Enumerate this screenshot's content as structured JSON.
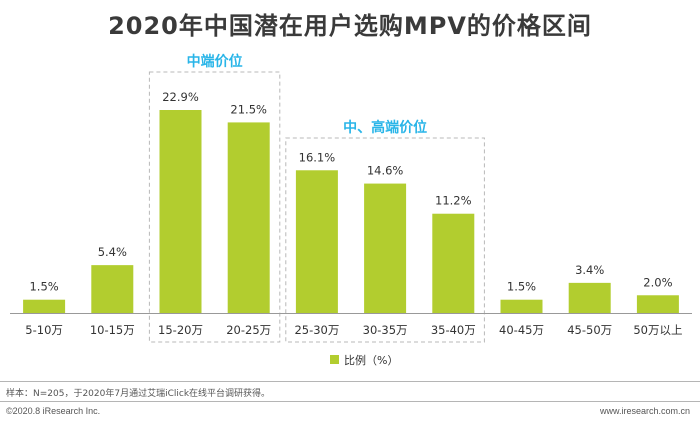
{
  "title": "2020年中国潜在用户选购MPV的价格区间",
  "chart_data": {
    "type": "bar",
    "categories": [
      "5-10万",
      "10-15万",
      "15-20万",
      "20-25万",
      "25-30万",
      "30-35万",
      "35-40万",
      "40-45万",
      "45-50万",
      "50万以上"
    ],
    "series": [
      {
        "name": "比例（%）",
        "values": [
          1.5,
          5.4,
          22.9,
          21.5,
          16.1,
          14.6,
          11.2,
          1.5,
          3.4,
          2.0
        ],
        "labels": [
          "1.5%",
          "5.4%",
          "22.9%",
          "21.5%",
          "16.1%",
          "14.6%",
          "11.2%",
          "1.5%",
          "3.4%",
          "2.0%"
        ]
      }
    ],
    "ylim": [
      0,
      25
    ],
    "grid": false,
    "legend_position": "bottom-center",
    "groups": [
      {
        "label": "中端价位",
        "categories": [
          "15-20万",
          "20-25万"
        ]
      },
      {
        "label": "中、高端价位",
        "categories": [
          "25-30万",
          "30-35万",
          "35-40万"
        ]
      }
    ],
    "colors": {
      "bar": "#b2cd2f",
      "group_label": "#29b5e8",
      "group_border": "#b8b8b8",
      "axis": "#999999",
      "text": "#333333"
    }
  },
  "footer": {
    "source_note": "样本：N=205，于2020年7月通过艾瑞iClick在线平台调研获得。",
    "copyright": "©2020.8 iResearch Inc.",
    "website": "www.iresearch.com.cn"
  }
}
